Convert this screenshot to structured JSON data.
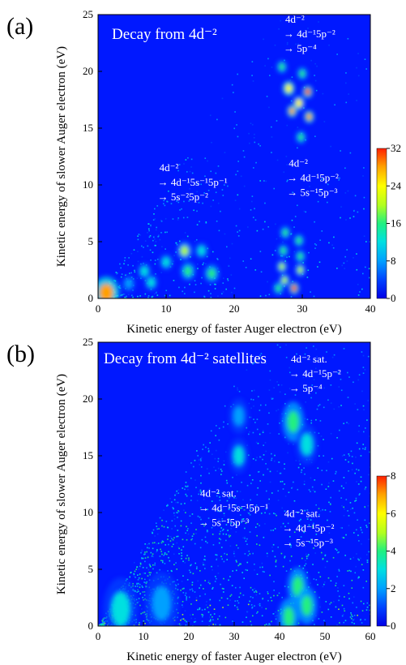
{
  "colors": {
    "background": "#0018ff",
    "colormap": [
      "#0000e6",
      "#0040ff",
      "#00a0ff",
      "#00e0e0",
      "#20f080",
      "#b0ff20",
      "#ffff00",
      "#ffa000",
      "#ff2000"
    ]
  },
  "chart_data": [
    {
      "type": "heatmap",
      "panel_label": "(a)",
      "title": "Decay from 4d⁻²",
      "xlabel": "Kinetic energy of faster Auger electron (eV)",
      "ylabel": "Kinetic energy of slower Auger electron (eV)",
      "xlim": [
        0,
        40
      ],
      "ylim": [
        0,
        25
      ],
      "x_ticks": [
        0,
        10,
        20,
        30,
        40
      ],
      "y_ticks": [
        0,
        5,
        10,
        15,
        20,
        25
      ],
      "colorbar": {
        "min": 0,
        "max": 32,
        "ticks": [
          0,
          8,
          16,
          24,
          32
        ]
      },
      "annotations": [
        {
          "lines": [
            "4d⁻²",
            "→ 4d⁻¹5p⁻²",
            "→ 5p⁻⁴"
          ],
          "x": 27.5,
          "y": 24.3
        },
        {
          "lines": [
            "4d⁻²",
            "→ 4d⁻¹5s⁻¹5p⁻¹",
            "→ 5s⁻²5p⁻²"
          ],
          "x": 9,
          "y": 11.2
        },
        {
          "lines": [
            "4d⁻²",
            "→ 4d⁻¹5p⁻²",
            "→ 5s⁻¹5p⁻³"
          ],
          "x": 28,
          "y": 11.6
        }
      ],
      "hotspots": [
        {
          "x": 1.2,
          "y": 0.5,
          "value": 28,
          "spread": 1.3
        },
        {
          "x": 28,
          "y": 18.5,
          "value": 24,
          "spread": 0.6
        },
        {
          "x": 30.8,
          "y": 18.2,
          "value": 30,
          "spread": 0.5
        },
        {
          "x": 29.5,
          "y": 17.2,
          "value": 22,
          "spread": 0.6
        },
        {
          "x": 28.5,
          "y": 16.5,
          "value": 26,
          "spread": 0.5
        },
        {
          "x": 31,
          "y": 16.0,
          "value": 28,
          "spread": 0.5
        },
        {
          "x": 27,
          "y": 20.4,
          "value": 14,
          "spread": 0.5
        },
        {
          "x": 30,
          "y": 19.8,
          "value": 16,
          "spread": 0.5
        },
        {
          "x": 29.8,
          "y": 14.2,
          "value": 14,
          "spread": 0.5
        },
        {
          "x": 27.5,
          "y": 5.8,
          "value": 14,
          "spread": 0.5
        },
        {
          "x": 29.5,
          "y": 5.1,
          "value": 14,
          "spread": 0.5
        },
        {
          "x": 27.2,
          "y": 4.2,
          "value": 14,
          "spread": 0.5
        },
        {
          "x": 29.7,
          "y": 3.7,
          "value": 16,
          "spread": 0.5
        },
        {
          "x": 27,
          "y": 2.8,
          "value": 18,
          "spread": 0.5
        },
        {
          "x": 29.7,
          "y": 2.5,
          "value": 18,
          "spread": 0.5
        },
        {
          "x": 27.4,
          "y": 1.6,
          "value": 18,
          "spread": 0.5
        },
        {
          "x": 28.8,
          "y": 0.9,
          "value": 30,
          "spread": 0.5
        },
        {
          "x": 26.5,
          "y": 0.9,
          "value": 14,
          "spread": 0.5
        },
        {
          "x": 12.7,
          "y": 4.2,
          "value": 18,
          "spread": 0.7
        },
        {
          "x": 15.2,
          "y": 4.2,
          "value": 12,
          "spread": 0.7
        },
        {
          "x": 10,
          "y": 3.2,
          "value": 12,
          "spread": 0.7
        },
        {
          "x": 13.2,
          "y": 2.4,
          "value": 14,
          "spread": 0.7
        },
        {
          "x": 16.7,
          "y": 2.2,
          "value": 16,
          "spread": 0.7
        },
        {
          "x": 6.8,
          "y": 2.4,
          "value": 10,
          "spread": 0.7
        },
        {
          "x": 7.8,
          "y": 1.4,
          "value": 10,
          "spread": 0.7
        },
        {
          "x": 4.5,
          "y": 1.3,
          "value": 8,
          "spread": 0.7
        }
      ]
    },
    {
      "type": "heatmap",
      "panel_label": "(b)",
      "title": "Decay from 4d⁻² satellites",
      "xlabel": "Kinetic energy of faster Auger electron (eV)",
      "ylabel": "Kinetic energy of slower Auger electron (eV)",
      "xlim": [
        0,
        60
      ],
      "ylim": [
        0,
        25
      ],
      "x_ticks": [
        0,
        10,
        20,
        30,
        40,
        50,
        60
      ],
      "y_ticks": [
        0,
        5,
        10,
        15,
        20,
        25
      ],
      "colorbar": {
        "min": 0,
        "max": 8,
        "ticks": [
          0,
          2,
          4,
          6,
          8
        ]
      },
      "annotations": [
        {
          "lines": [
            "4d⁻² sat.",
            "→ 4d⁻¹5p⁻²",
            "→ 5p⁻⁴"
          ],
          "x": 42.5,
          "y": 23.2
        },
        {
          "lines": [
            "4d⁻² sat.",
            "→ 4d⁻¹5s⁻¹5p⁻¹",
            "→ 5s⁻¹5p⁻³"
          ],
          "x": 22.5,
          "y": 11.4
        },
        {
          "lines": [
            "4d⁻² sat.",
            "→ 4d⁻¹5p⁻²",
            "→ 5s⁻¹5p⁻³"
          ],
          "x": 41,
          "y": 9.6
        }
      ],
      "hotspots": [
        {
          "x": 43,
          "y": 18,
          "value": 3.5,
          "spread": 1.6
        },
        {
          "x": 46,
          "y": 16,
          "value": 3,
          "spread": 1.6
        },
        {
          "x": 31,
          "y": 15,
          "value": 2.5,
          "spread": 1.4
        },
        {
          "x": 31,
          "y": 18.5,
          "value": 2,
          "spread": 1.4
        },
        {
          "x": 44,
          "y": 3.5,
          "value": 3.5,
          "spread": 1.5
        },
        {
          "x": 46,
          "y": 1.8,
          "value": 4,
          "spread": 1.5
        },
        {
          "x": 42,
          "y": 0.8,
          "value": 4,
          "spread": 1.5
        },
        {
          "x": 5,
          "y": 1.5,
          "value": 2.5,
          "spread": 2.5
        },
        {
          "x": 14,
          "y": 2,
          "value": 2,
          "spread": 2.5
        }
      ]
    }
  ]
}
